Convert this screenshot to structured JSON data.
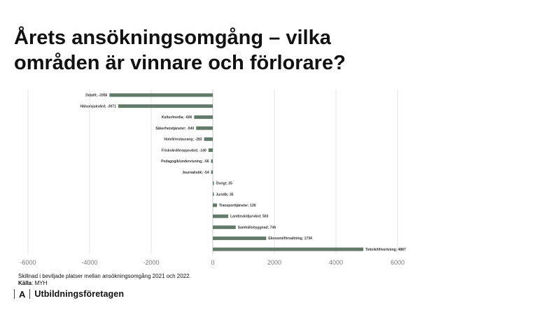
{
  "slide": {
    "title_line1": "Årets ansökningsomgång – vilka",
    "title_line2": "områden är vinnare och förlorare?",
    "caption_text": "Skillnad i beviljade platser mellan ansökningsomgång 2021 och 2022.",
    "source_label": "Källa",
    "source_value": ": MYH",
    "logo_mark": "A",
    "logo_text": "Utbildningsföretagen"
  },
  "chart_data": {
    "type": "bar",
    "orientation": "horizontal",
    "categories": [
      "Data/It",
      "Hälso/sjukvård",
      "Kultur/media",
      "Säkerhetstjänster",
      "Hotell/restaurang",
      "Friskvård/kroppsvård",
      "Pedagogik/undervisning",
      "Journalistik",
      "Övrigt",
      "Juridik",
      "Transporttjänster",
      "Lantbruk/djurvård",
      "Samhällsbyggnad",
      "Ekonomi/förvaltning",
      "Teknik/tillverkning"
    ],
    "values": [
      -3356,
      -3071,
      -606,
      -540,
      -283,
      -140,
      -56,
      -54,
      35,
      35,
      136,
      503,
      744,
      1734,
      4887
    ],
    "xlim": [
      -6000,
      6000
    ],
    "xticks": [
      -6000,
      -4000,
      -2000,
      0,
      2000,
      4000,
      6000
    ],
    "bar_color": "#617a6a",
    "grid": true,
    "legend": "none"
  }
}
